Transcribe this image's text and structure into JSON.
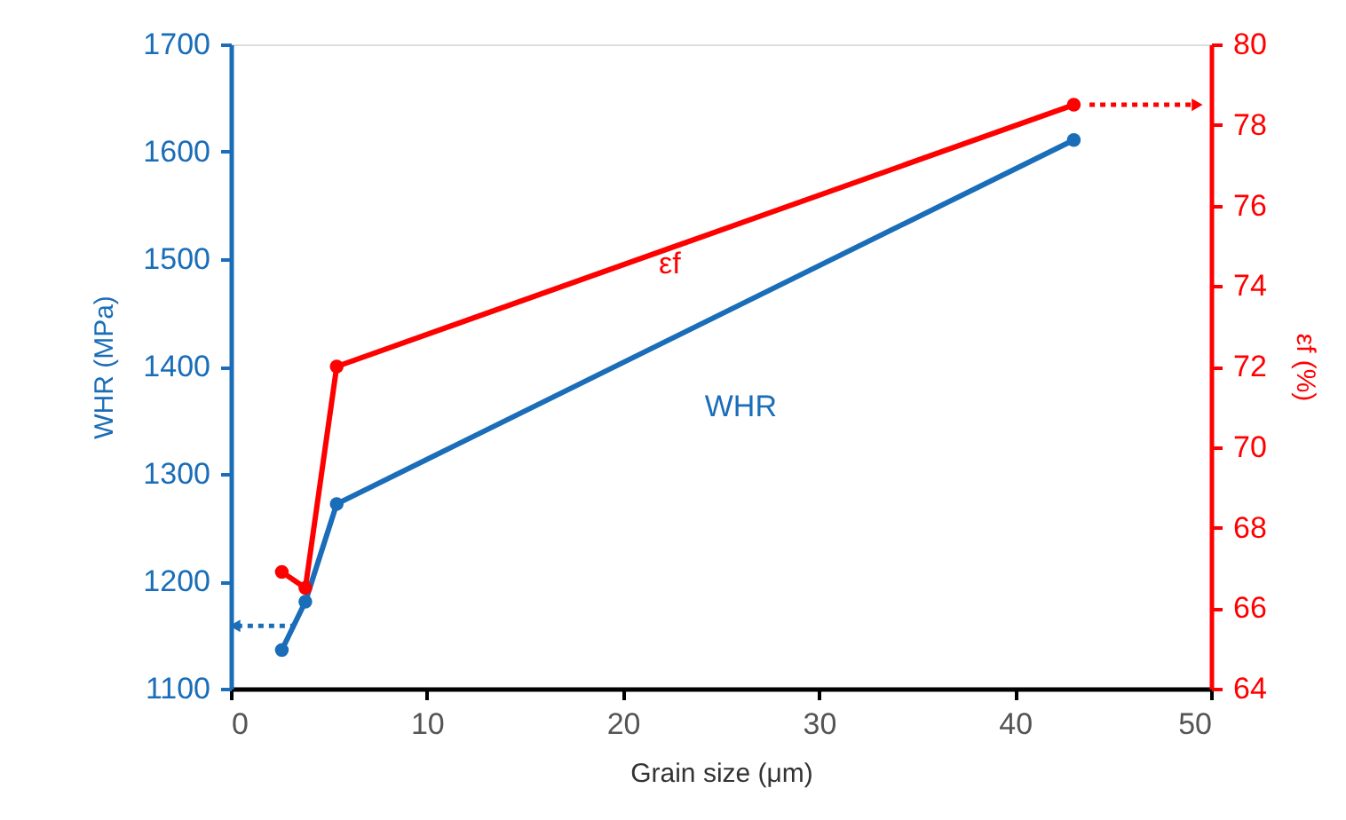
{
  "chart_data": {
    "type": "line",
    "xlabel": "Grain size (μm)",
    "ylabel": "WHR (MPa)",
    "y2label": "εf (%)",
    "x": [
      2.6,
      3.8,
      5.4,
      43
    ],
    "series": [
      {
        "name": "WHR",
        "color": "#1a6db8",
        "values": [
          1136,
          1181,
          1272,
          1611
        ]
      },
      {
        "name": "εf",
        "color": "#ff0000",
        "axis": "y2",
        "values": [
          66.9,
          66.5,
          72.0,
          78.5
        ]
      }
    ],
    "xlim": [
      0,
      50
    ],
    "xticks": [
      0,
      10,
      20,
      30,
      40,
      50
    ],
    "ylim": [
      1100,
      1700
    ],
    "yticks": [
      1100,
      1200,
      1300,
      1400,
      1500,
      1600,
      1700
    ],
    "y2lim": [
      64,
      80
    ],
    "y2ticks": [
      64,
      66,
      68,
      70,
      72,
      74,
      76,
      78,
      80
    ],
    "marker": "circle",
    "line_style": "solid",
    "grid": false
  }
}
